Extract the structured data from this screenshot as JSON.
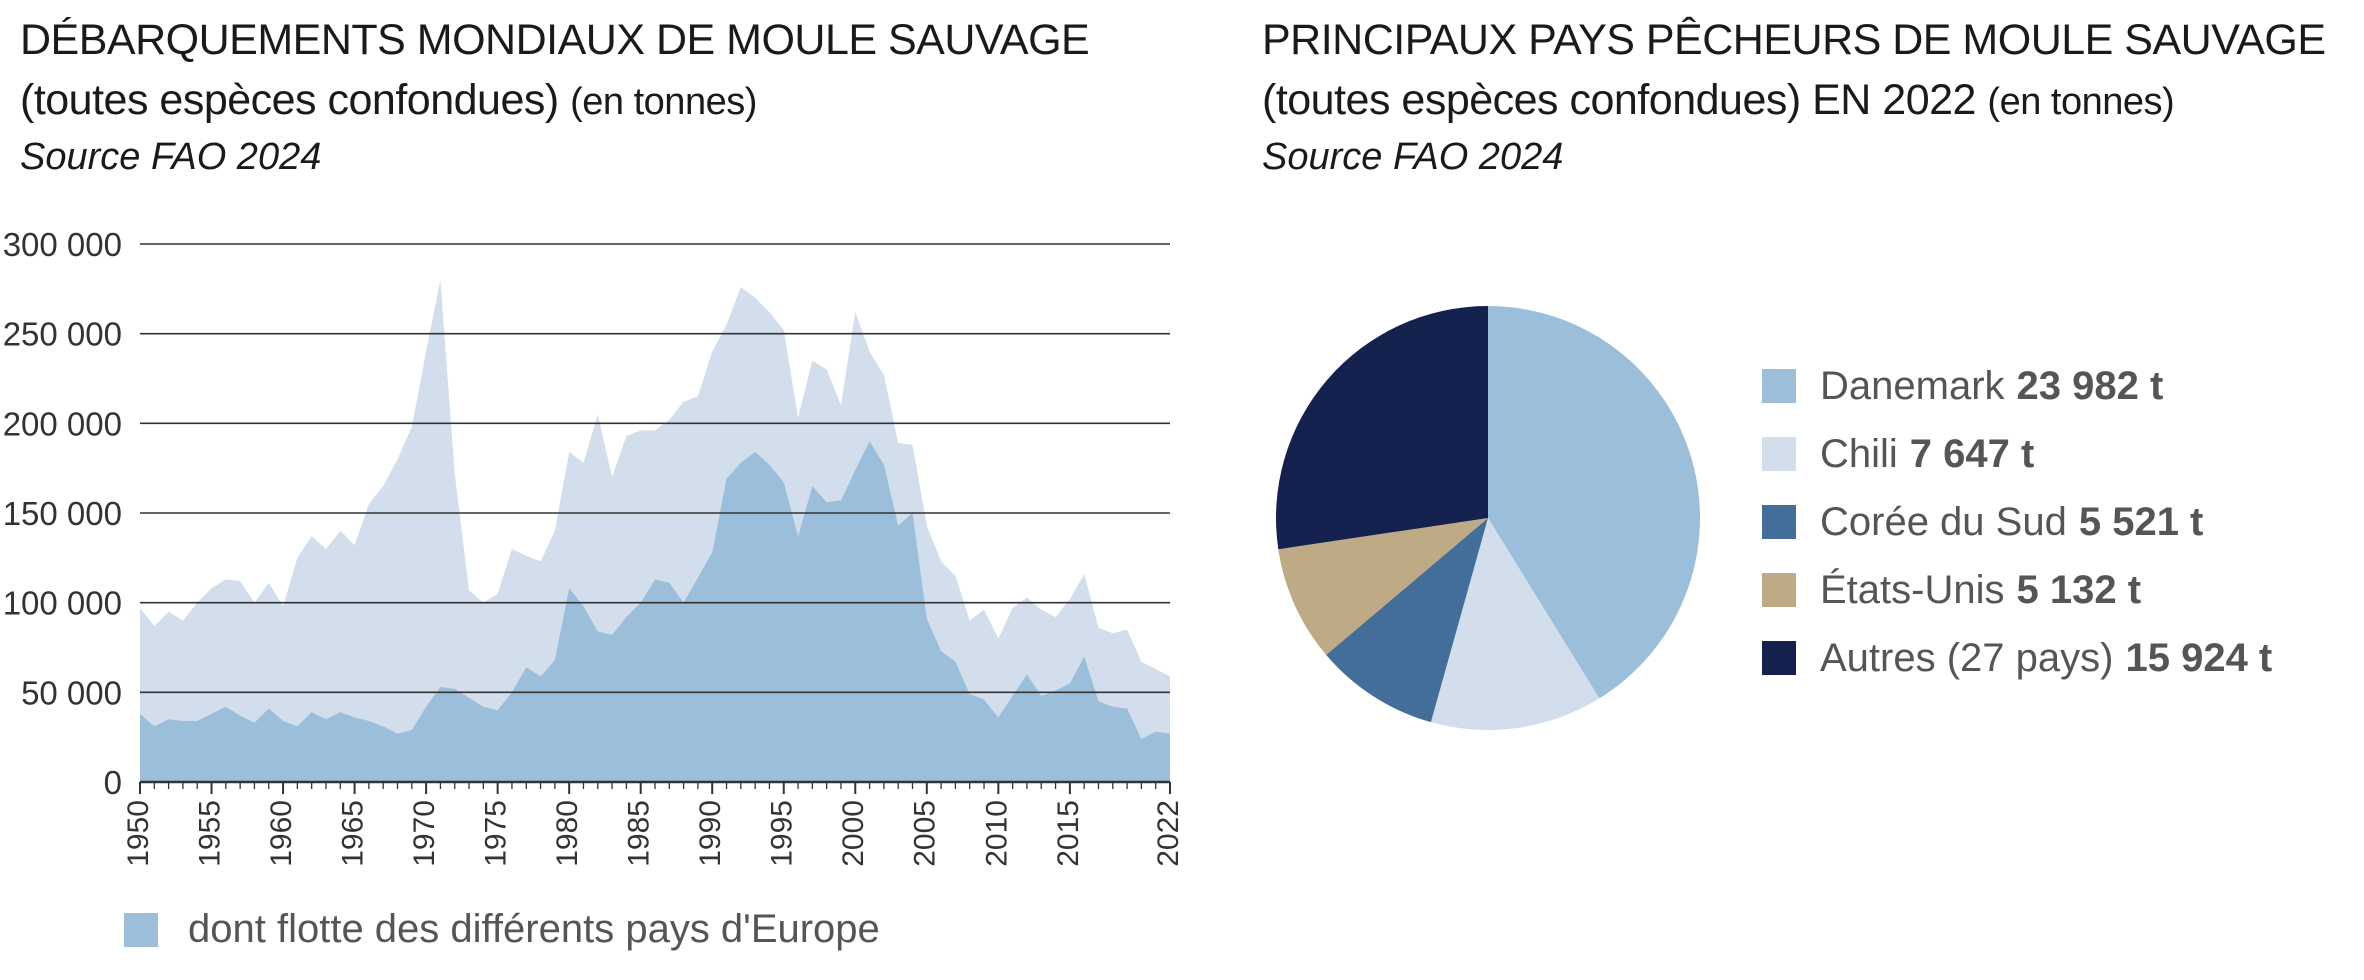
{
  "left": {
    "title_line1": "DÉBARQUEMENTS MONDIAUX DE MOULE SAUVAGE",
    "title_line2": "(toutes espèces confondues)",
    "title_unit": "(en tonnes)",
    "source": "Source FAO 2024",
    "europe_legend": "dont flotte des différents pays d'Europe"
  },
  "right": {
    "title_line1": "PRINCIPAUX PAYS PÊCHEURS DE MOULE SAUVAGE",
    "title_line2": "(toutes espèces confondues) EN 2022",
    "title_unit": "(en tonnes)",
    "source": "Source FAO 2024"
  },
  "chart_data": [
    {
      "type": "area",
      "title": "DÉBARQUEMENTS MONDIAUX DE MOULE SAUVAGE (toutes espèces confondues) (en tonnes)",
      "ylim": [
        0,
        300000
      ],
      "yticks": [
        0,
        50000,
        100000,
        150000,
        200000,
        250000,
        300000
      ],
      "ytick_labels": [
        "0",
        "50 000",
        "100 000",
        "150 000",
        "200 000",
        "250 000",
        "300 000"
      ],
      "xticks": [
        1950,
        1955,
        1960,
        1965,
        1970,
        1975,
        1980,
        1985,
        1990,
        1995,
        2000,
        2005,
        2010,
        2015,
        2022
      ],
      "grid": true,
      "colors": {
        "world": "#d2deeb",
        "europe": "#9bbfda",
        "grid": "#333333"
      },
      "x": [
        1950,
        1951,
        1952,
        1953,
        1954,
        1955,
        1956,
        1957,
        1958,
        1959,
        1960,
        1961,
        1962,
        1963,
        1964,
        1965,
        1966,
        1967,
        1968,
        1969,
        1970,
        1971,
        1972,
        1973,
        1974,
        1975,
        1976,
        1977,
        1978,
        1979,
        1980,
        1981,
        1982,
        1983,
        1984,
        1985,
        1986,
        1987,
        1988,
        1989,
        1990,
        1991,
        1992,
        1993,
        1994,
        1995,
        1996,
        1997,
        1998,
        1999,
        2000,
        2001,
        2002,
        2003,
        2004,
        2005,
        2006,
        2007,
        2008,
        2009,
        2010,
        2011,
        2012,
        2013,
        2014,
        2015,
        2016,
        2017,
        2018,
        2019,
        2020,
        2021,
        2022
      ],
      "series": [
        {
          "values": [
            97000,
            87000,
            95000,
            90000,
            100000,
            108000,
            113000,
            112000,
            100000,
            111000,
            98000,
            125000,
            137000,
            130000,
            140000,
            132000,
            155000,
            165000,
            180000,
            198000,
            240000,
            280000,
            172000,
            107000,
            100000,
            105000,
            130000,
            126000,
            123000,
            140000,
            184000,
            178000,
            205000,
            170000,
            193000,
            196000,
            196000,
            202000,
            212000,
            215000,
            240000,
            255000,
            276000,
            270000,
            262000,
            252000,
            203000,
            235000,
            230000,
            210000,
            262000,
            240000,
            227000,
            189000,
            188000,
            143000,
            123000,
            115000,
            90000,
            96000,
            80000,
            97000,
            103000,
            96000,
            92000,
            102000,
            116000,
            86000,
            83000,
            85000,
            67000,
            63000,
            59000
          ]
        },
        {
          "name": "dont flotte des différents pays d'Europe",
          "values": [
            38000,
            31000,
            35000,
            34000,
            34000,
            38000,
            42000,
            37000,
            33000,
            41000,
            34000,
            31000,
            39000,
            35000,
            39000,
            36000,
            34000,
            31000,
            27000,
            29000,
            42000,
            53000,
            52000,
            47000,
            42000,
            40000,
            50000,
            64000,
            59000,
            68000,
            108000,
            98000,
            84000,
            82000,
            92000,
            100000,
            113000,
            111000,
            100000,
            114000,
            128000,
            169000,
            178000,
            184000,
            177000,
            167000,
            137000,
            165000,
            156000,
            157000,
            174000,
            190000,
            177000,
            143000,
            150000,
            91000,
            73000,
            67000,
            49000,
            46000,
            36000,
            48000,
            60000,
            48000,
            51000,
            55000,
            70000,
            45000,
            42000,
            41000,
            24000,
            28000,
            27000
          ]
        }
      ]
    },
    {
      "type": "pie",
      "title": "PRINCIPAUX PAYS PÊCHEURS DE MOULE SAUVAGE (toutes espèces confondues) EN 2022 (en tonnes)",
      "unit": "t",
      "legend_position": "right",
      "slices": [
        {
          "label": "Danemark",
          "value": 23982,
          "value_label": "23 982 t",
          "color": "#9bbfda"
        },
        {
          "label": "Chili",
          "value": 7647,
          "value_label": "7 647 t",
          "color": "#d2deeb"
        },
        {
          "label": "Corée du Sud",
          "value": 5521,
          "value_label": "5 521 t",
          "color": "#436e99"
        },
        {
          "label": "États-Unis",
          "value": 5132,
          "value_label": "5 132 t",
          "color": "#bfaa86"
        },
        {
          "label": "Autres (27 pays)",
          "value": 15924,
          "value_label": "15 924 t",
          "color": "#14204d"
        }
      ]
    }
  ]
}
